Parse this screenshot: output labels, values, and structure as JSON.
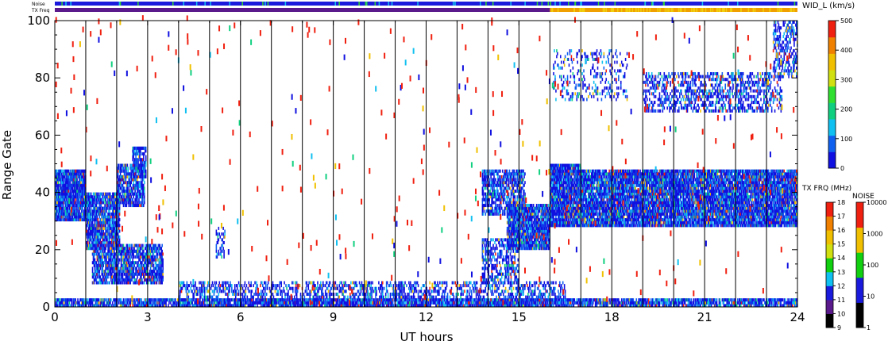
{
  "chart_data": {
    "type": "heatmap",
    "xlabel": "UT hours",
    "ylabel": "Range Gate",
    "xlim": [
      0,
      24
    ],
    "ylim": [
      0,
      100
    ],
    "xticks": [
      0,
      3,
      6,
      9,
      12,
      15,
      18,
      21,
      24
    ],
    "yticks": [
      0,
      20,
      40,
      60,
      80,
      100
    ],
    "hour_gridlines": [
      1,
      2,
      3,
      4,
      5,
      6,
      7,
      8,
      9,
      10,
      11,
      12,
      13,
      14,
      15,
      16,
      17,
      18,
      19,
      20,
      21,
      22,
      23
    ],
    "top_bars": {
      "noise_label": "Noise",
      "txfreq_label": "TX Freq",
      "noise_color": "#1a1adc",
      "txfreq_segments": [
        {
          "from": 0,
          "to": 16,
          "color": "#5a1a8c"
        },
        {
          "from": 16,
          "to": 24,
          "color": "#f0a000"
        }
      ]
    },
    "scatter_regions": [
      {
        "x0": 0.0,
        "x1": 1.0,
        "y0": 30,
        "y1": 48,
        "density": 0.9
      },
      {
        "x0": 1.0,
        "x1": 2.1,
        "y0": 20,
        "y1": 40,
        "density": 0.8
      },
      {
        "x0": 2.0,
        "x1": 2.9,
        "y0": 35,
        "y1": 50,
        "density": 0.7
      },
      {
        "x0": 2.5,
        "x1": 2.95,
        "y0": 45,
        "y1": 56,
        "density": 0.6
      },
      {
        "x0": 1.2,
        "x1": 3.5,
        "y0": 8,
        "y1": 22,
        "density": 0.7
      },
      {
        "x0": 5.2,
        "x1": 5.5,
        "y0": 17,
        "y1": 28,
        "density": 0.3
      },
      {
        "x0": 13.8,
        "x1": 15.2,
        "y0": 32,
        "y1": 48,
        "density": 0.6
      },
      {
        "x0": 14.6,
        "x1": 16.0,
        "y0": 20,
        "y1": 36,
        "density": 0.85
      },
      {
        "x0": 13.8,
        "x1": 15.0,
        "y0": 8,
        "y1": 24,
        "density": 0.4
      },
      {
        "x0": 16.0,
        "x1": 17.0,
        "y0": 28,
        "y1": 50,
        "density": 0.9
      },
      {
        "x0": 17.0,
        "x1": 24.0,
        "y0": 28,
        "y1": 48,
        "density": 0.85
      },
      {
        "x0": 16.1,
        "x1": 18.5,
        "y0": 72,
        "y1": 90,
        "density": 0.15
      },
      {
        "x0": 19.0,
        "x1": 23.5,
        "y0": 68,
        "y1": 82,
        "density": 0.35
      },
      {
        "x0": 23.2,
        "x1": 24.0,
        "y0": 80,
        "y1": 100,
        "density": 0.4
      },
      {
        "x0": 0.0,
        "x1": 24.0,
        "y0": 0,
        "y1": 3,
        "density": 0.75
      },
      {
        "x0": 4.0,
        "x1": 16.5,
        "y0": 0,
        "y1": 9,
        "density": 0.35
      }
    ],
    "colorbar_width": {
      "label": "WID_L (km/s)",
      "ticks": [
        "0",
        "100",
        "200",
        "300",
        "400",
        "500"
      ],
      "colors": [
        "#1010e0",
        "#1060f0",
        "#10c0f0",
        "#10d080",
        "#30e030",
        "#d0e010",
        "#f0c000",
        "#f08000",
        "#f02010"
      ]
    },
    "colorbar_txfreq": {
      "label": "TX FRQ (MHz)",
      "ticks": [
        "9",
        "10",
        "11",
        "12",
        "13",
        "14",
        "15",
        "16",
        "17",
        "18"
      ],
      "colors": [
        "#000000",
        "#5a1a8c",
        "#1a1adc",
        "#10c0f0",
        "#10d010",
        "#d0e010",
        "#f0c000",
        "#f08000",
        "#f02010"
      ]
    },
    "colorbar_noise": {
      "label": "NOISE",
      "ticks": [
        "1",
        "10",
        "100",
        "1000",
        "10000"
      ],
      "colors": [
        "#000000",
        "#1a1adc",
        "#10d010",
        "#f0c000",
        "#f02010"
      ]
    }
  }
}
